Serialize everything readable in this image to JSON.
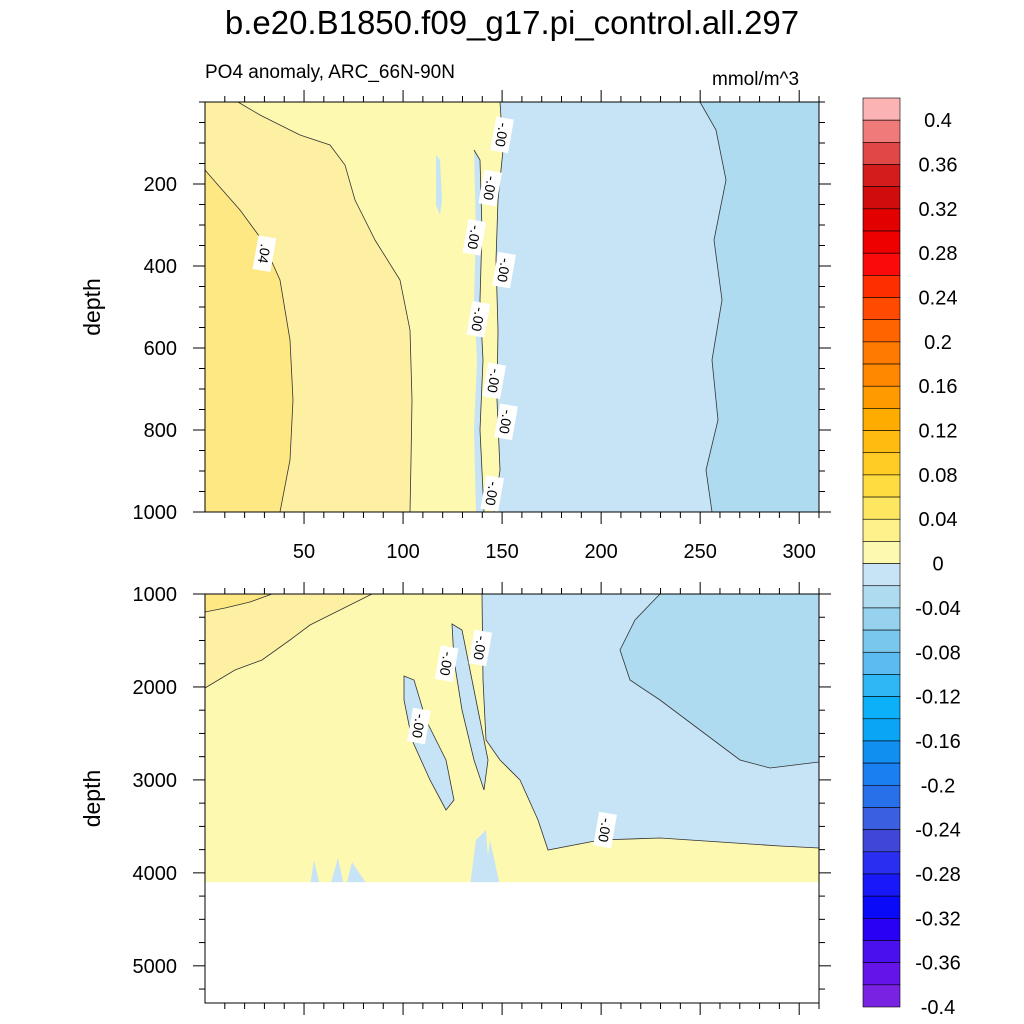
{
  "title": "b.e20.B1850.f09_g17.pi_control.all.297",
  "subtitle": "PO4 anomaly, ARC_66N-90N",
  "units": "mmol/m^3",
  "colors": {
    "pale_yellow": "#fdf9b0",
    "light_yellow": "#fef0a3",
    "yellow": "#fee883",
    "light_blue": "#c6e4f5",
    "blue": "#aedbf0"
  },
  "chart_data": [
    {
      "type": "heatmap",
      "panel": "top",
      "xlabel": "",
      "ylabel": "depth",
      "xlim": [
        0,
        310
      ],
      "ylim": [
        1000,
        0
      ],
      "x_ticks": [
        50,
        100,
        150,
        200,
        250,
        300
      ],
      "y_ticks": [
        200,
        400,
        600,
        800,
        1000
      ],
      "contour_labels": [
        {
          "text": ".04",
          "x": 30,
          "y": 370
        },
        {
          "text": "-.00",
          "x": 150,
          "y": 80
        },
        {
          "text": "-.00",
          "x": 144,
          "y": 210
        },
        {
          "text": "-.00",
          "x": 136,
          "y": 330
        },
        {
          "text": "-.00",
          "x": 151,
          "y": 410
        },
        {
          "text": "-.00",
          "x": 138,
          "y": 530
        },
        {
          "text": "-.00",
          "x": 146,
          "y": 680
        },
        {
          "text": "-.00",
          "x": 152,
          "y": 780
        },
        {
          "text": "-.00",
          "x": 145,
          "y": 955
        }
      ]
    },
    {
      "type": "heatmap",
      "panel": "bottom",
      "xlabel": "",
      "ylabel": "depth",
      "xlim": [
        0,
        310
      ],
      "ylim": [
        5400,
        1000
      ],
      "y_ticks": [
        1000,
        2000,
        3000,
        4000,
        5000
      ],
      "bottom_depth": 4100,
      "contour_labels": [
        {
          "text": "-.00",
          "x": 122,
          "y": 1750
        },
        {
          "text": "-.00",
          "x": 139,
          "y": 1580
        },
        {
          "text": "-.00",
          "x": 108,
          "y": 2420
        },
        {
          "text": "-.00",
          "x": 202,
          "y": 3540
        }
      ]
    }
  ],
  "colorbar": {
    "labels": [
      "0.4",
      "0.36",
      "0.32",
      "0.28",
      "0.24",
      "0.2",
      "0.16",
      "0.12",
      "0.08",
      "0.04",
      "0",
      "-0.04",
      "-0.08",
      "-0.12",
      "-0.16",
      "-0.2",
      "-0.24",
      "-0.28",
      "-0.32",
      "-0.36",
      "-0.4"
    ],
    "colors": [
      "#fcb3b3",
      "#f07a7a",
      "#e04848",
      "#d41c1c",
      "#d00c0c",
      "#e20000",
      "#ee0000",
      "#fa0a0a",
      "#ff2e00",
      "#ff4a00",
      "#ff6400",
      "#ff7a00",
      "#ff8800",
      "#ff9a00",
      "#ffac00",
      "#ffbb10",
      "#ffcc26",
      "#ffdc40",
      "#fee760",
      "#fef08a",
      "#fdf9b0",
      "#c6e4f5",
      "#aedbf0",
      "#96d1ee",
      "#7ac7ee",
      "#5cbbf0",
      "#2eb6f5",
      "#0cb0f8",
      "#0aa5f4",
      "#108ff0",
      "#1a7ff0",
      "#2870ea",
      "#3a5fe0",
      "#4046d8",
      "#2a2ef0",
      "#1818f8",
      "#0a0af8",
      "#2a00f5",
      "#4a10ee",
      "#6414e8",
      "#7a22e2"
    ]
  }
}
